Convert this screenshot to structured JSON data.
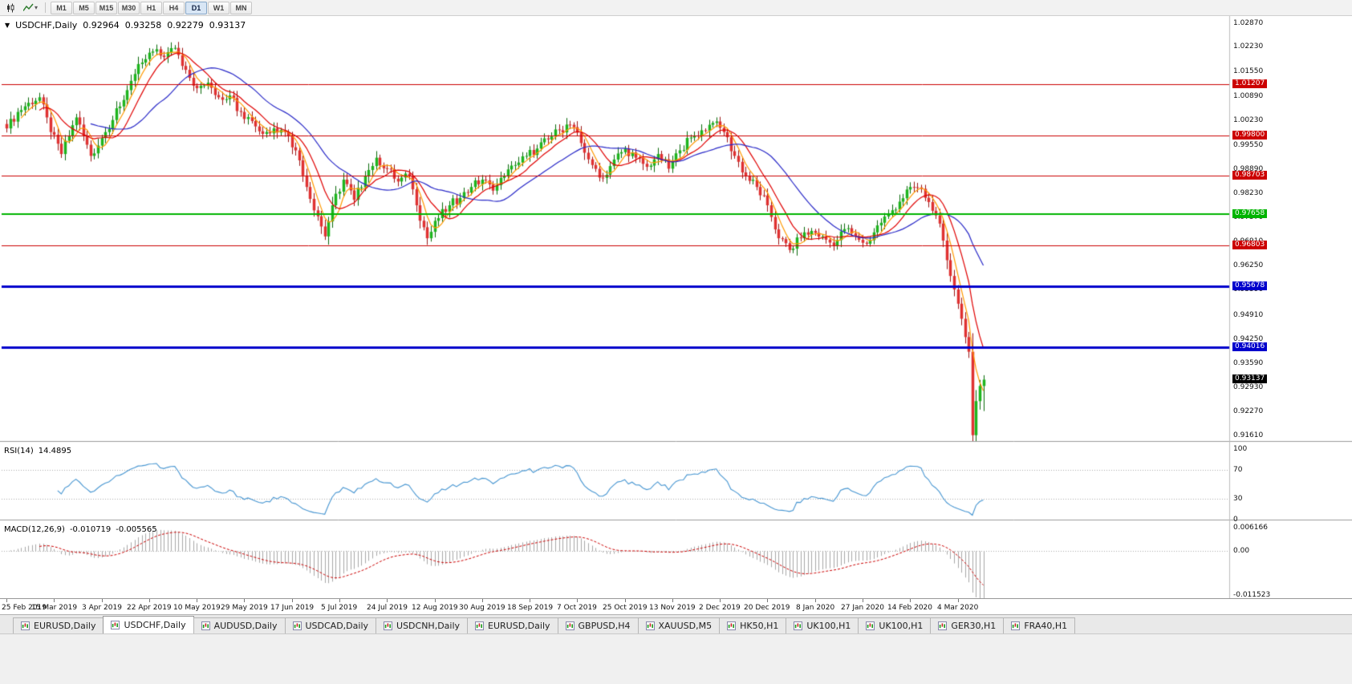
{
  "toolbar": {
    "timeframes": [
      "M1",
      "M5",
      "M15",
      "M30",
      "H1",
      "H4",
      "D1",
      "W1",
      "MN"
    ],
    "active_timeframe": "D1"
  },
  "chart_header": {
    "collapse_icon": "▼",
    "symbol_period": "USDCHF,Daily",
    "open": "0.92964",
    "high": "0.93258",
    "low": "0.92279",
    "close": "0.93137"
  },
  "rsi_header": {
    "label": "RSI(14)",
    "value": "14.4895"
  },
  "macd_header": {
    "label": "MACD(12,26,9)",
    "macd_value": "-0.010719",
    "signal_value": "-0.005565"
  },
  "tabs": {
    "active_index": 1,
    "items": [
      "EURUSD,Daily",
      "USDCHF,Daily",
      "AUDUSD,Daily",
      "USDCAD,Daily",
      "USDCNH,Daily",
      "EURUSD,Daily",
      "GBPUSD,H4",
      "XAUUSD,M5",
      "HK50,H1",
      "UK100,H1",
      "UK100,H1",
      "GER30,H1",
      "FRA40,H1"
    ]
  },
  "chart_data": {
    "type": "candlestick",
    "symbol": "USDCHF",
    "period": "Daily",
    "last_candle": {
      "open": 0.92964,
      "high": 0.93258,
      "low": 0.92279,
      "close": 0.93137
    },
    "candle_count": 268,
    "price_range": [
      0.9146,
      1.0307
    ],
    "y_axis_labels": [
      "1.02870",
      "1.02230",
      "1.01550",
      "1.00890",
      "1.00230",
      "0.99550",
      "0.98890",
      "0.98230",
      "0.97570",
      "0.96910",
      "0.96250",
      "0.95590",
      "0.94910",
      "0.94250",
      "0.93590",
      "0.92930",
      "0.92270",
      "0.91610"
    ],
    "x_tick_interval_candles": 13,
    "x_tick_labels": [
      "25 Feb 2019",
      "15 Mar 2019",
      "3 Apr 2019",
      "22 Apr 2019",
      "10 May 2019",
      "29 May 2019",
      "17 Jun 2019",
      "5 Jul 2019",
      "24 Jul 2019",
      "12 Aug 2019",
      "30 Aug 2019",
      "18 Sep 2019",
      "7 Oct 2019",
      "25 Oct 2019",
      "13 Nov 2019",
      "2 Dec 2019",
      "20 Dec 2019",
      "8 Jan 2020",
      "27 Jan 2020",
      "14 Feb 2020",
      "4 Mar 2020"
    ],
    "close_anchors": [
      [
        0,
        1.0
      ],
      [
        3,
        1.0045
      ],
      [
        6,
        1.007
      ],
      [
        9,
        1.0085
      ],
      [
        12,
        0.999
      ],
      [
        15,
        0.993
      ],
      [
        19,
        1.003
      ],
      [
        23,
        0.9925
      ],
      [
        27,
        0.999
      ],
      [
        31,
        1.006
      ],
      [
        34,
        1.013
      ],
      [
        37,
        1.018
      ],
      [
        40,
        1.021
      ],
      [
        43,
        1.0195
      ],
      [
        46,
        1.022
      ],
      [
        49,
        1.016
      ],
      [
        52,
        1.011
      ],
      [
        55,
        1.0125
      ],
      [
        58,
        1.0085
      ],
      [
        61,
        1.009
      ],
      [
        64,
        1.0045
      ],
      [
        67,
        1.002
      ],
      [
        70,
        0.9985
      ],
      [
        73,
        1.0
      ],
      [
        76,
        0.999
      ],
      [
        79,
        0.994
      ],
      [
        82,
        0.984
      ],
      [
        85,
        0.976
      ],
      [
        87,
        0.9705
      ],
      [
        89,
        0.979
      ],
      [
        92,
        0.986
      ],
      [
        95,
        0.9805
      ],
      [
        98,
        0.987
      ],
      [
        101,
        0.992
      ],
      [
        104,
        0.989
      ],
      [
        107,
        0.9855
      ],
      [
        110,
        0.987
      ],
      [
        112,
        0.979
      ],
      [
        115,
        0.97
      ],
      [
        118,
        0.9755
      ],
      [
        121,
        0.979
      ],
      [
        124,
        0.981
      ],
      [
        127,
        0.984
      ],
      [
        130,
        0.986
      ],
      [
        133,
        0.983
      ],
      [
        136,
        0.987
      ],
      [
        139,
        0.99
      ],
      [
        142,
        0.9925
      ],
      [
        145,
        0.9945
      ],
      [
        148,
        0.997
      ],
      [
        151,
        0.9995
      ],
      [
        154,
        1.001
      ],
      [
        157,
        0.996
      ],
      [
        160,
        0.99
      ],
      [
        163,
        0.9865
      ],
      [
        166,
        0.9915
      ],
      [
        169,
        0.9945
      ],
      [
        172,
        0.992
      ],
      [
        175,
        0.9895
      ],
      [
        178,
        0.993
      ],
      [
        181,
        0.989
      ],
      [
        184,
        0.994
      ],
      [
        187,
        0.9975
      ],
      [
        190,
        0.9995
      ],
      [
        193,
        1.0015
      ],
      [
        196,
        0.999
      ],
      [
        199,
        0.9925
      ],
      [
        202,
        0.987
      ],
      [
        205,
        0.984
      ],
      [
        208,
        0.979
      ],
      [
        211,
        0.97
      ],
      [
        214,
        0.9668
      ],
      [
        217,
        0.97
      ],
      [
        220,
        0.972
      ],
      [
        223,
        0.9705
      ],
      [
        226,
        0.968
      ],
      [
        229,
        0.9725
      ],
      [
        232,
        0.9705
      ],
      [
        235,
        0.9685
      ],
      [
        238,
        0.9735
      ],
      [
        241,
        0.9765
      ],
      [
        244,
        0.98
      ],
      [
        247,
        0.984
      ],
      [
        250,
        0.9835
      ],
      [
        253,
        0.9775
      ],
      [
        255,
        0.974
      ],
      [
        257,
        0.964
      ],
      [
        259,
        0.956
      ],
      [
        261,
        0.948
      ],
      [
        262,
        0.943
      ],
      [
        263,
        0.939
      ],
      [
        264,
        0.9162
      ],
      [
        265,
        0.9255
      ],
      [
        266,
        0.92964
      ],
      [
        267,
        0.93137
      ]
    ],
    "up_color": "#1db51d",
    "up_border": "#0a6a0a",
    "down_color": "#e03131",
    "down_border": "#9c1414",
    "moving_averages": [
      {
        "period": 5,
        "color": "#ff9900"
      },
      {
        "period": 10,
        "color": "#e00000"
      },
      {
        "period": 24,
        "color": "#2929c8"
      }
    ],
    "horizontal_lines": [
      {
        "label": "1.01207",
        "value": 1.01207,
        "color": "#cc0000",
        "width": 1
      },
      {
        "label": "0.99800",
        "value": 0.998,
        "color": "#cc0000",
        "width": 1
      },
      {
        "label": "0.98703",
        "value": 0.98703,
        "color": "#cc0000",
        "width": 1
      },
      {
        "label": "0.97658",
        "value": 0.97658,
        "color": "#00b400",
        "width": 2
      },
      {
        "label": "0.96803",
        "value": 0.96803,
        "color": "#cc0000",
        "width": 1
      },
      {
        "label": "0.95678",
        "value": 0.95678,
        "color": "#0000cc",
        "width": 3
      },
      {
        "label": "0.94016",
        "value": 0.94016,
        "color": "#0000cc",
        "width": 3
      }
    ],
    "current_price_marker": {
      "label": "0.93137",
      "value": 0.93137,
      "bg": "#000000"
    },
    "rsi": {
      "period": 14,
      "last": 14.4895,
      "axis_labels": [
        "100",
        "70",
        "30",
        "0"
      ],
      "levels": [
        70,
        30
      ],
      "line_color": "#4796d2",
      "range": [
        0,
        100
      ]
    },
    "macd": {
      "fast": 12,
      "slow": 26,
      "signal": 9,
      "last_macd": -0.010719,
      "last_signal": -0.005565,
      "axis_labels": [
        "0.006166",
        "0.00",
        "-0.011523"
      ],
      "range": [
        -0.011523,
        0.006166
      ],
      "histogram_color": "#a8a8a8",
      "signal_color": "#cc0000"
    }
  }
}
